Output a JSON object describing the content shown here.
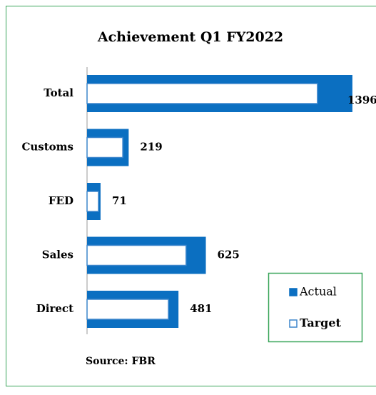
{
  "chart_data": {
    "type": "hbar",
    "title": "Achievement Q1 FY2022",
    "categories": [
      "Total",
      "Customs",
      "FED",
      "Sales",
      "Direct"
    ],
    "series": [
      {
        "name": "Actual",
        "color": "#0b6fc1",
        "values": [
          1396,
          219,
          71,
          625,
          481
        ]
      },
      {
        "name": "Target",
        "color": "#ffffff",
        "edgecolor": "#3d86cc",
        "values": [
          1212,
          188,
          60,
          521,
          428
        ]
      }
    ],
    "xlim": [
      0,
      1400
    ],
    "data_labels": true,
    "legend": "lower right",
    "annotation": "Source: FBR"
  }
}
